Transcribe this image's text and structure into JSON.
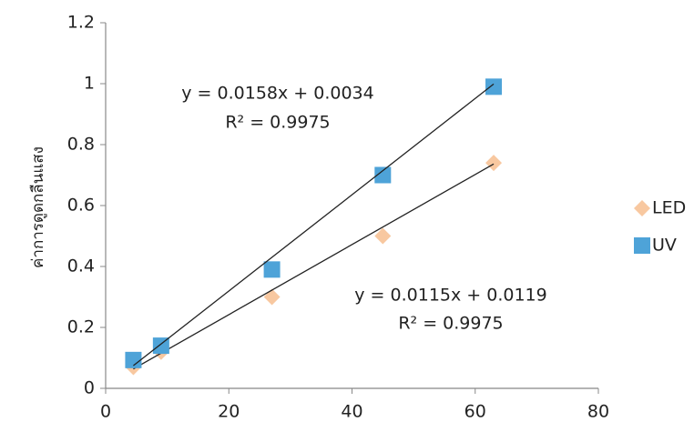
{
  "chart_data": {
    "type": "scatter",
    "y_label": "ค่าการดูดกลืนแสง",
    "xlim": [
      0,
      80
    ],
    "xticks": [
      0,
      20,
      40,
      60,
      80
    ],
    "ylim": [
      0,
      1.2
    ],
    "yticks": [
      0,
      0.2,
      0.4,
      0.6,
      0.8,
      1,
      1.2
    ],
    "legend": "right",
    "series": [
      {
        "name": "LED",
        "color": "#f8c8a0",
        "marker": "diamond",
        "x": [
          4.5,
          9,
          27,
          45,
          63
        ],
        "values": [
          0.07,
          0.12,
          0.3,
          0.5,
          0.74
        ],
        "trendline": {
          "equation": "y = 0.0115x + 0.0119",
          "r2": "R² = 0.9975",
          "slope": 0.0115,
          "intercept": 0.0119
        }
      },
      {
        "name": "UV",
        "color": "#4ea3d8",
        "marker": "square",
        "x": [
          4.5,
          9,
          27,
          45,
          63
        ],
        "values": [
          0.093,
          0.14,
          0.39,
          0.7,
          0.99
        ],
        "trendline": {
          "equation": "y = 0.0158x + 0.0034",
          "r2": "R² = 0.9975",
          "slope": 0.0158,
          "intercept": 0.0034
        }
      }
    ]
  }
}
